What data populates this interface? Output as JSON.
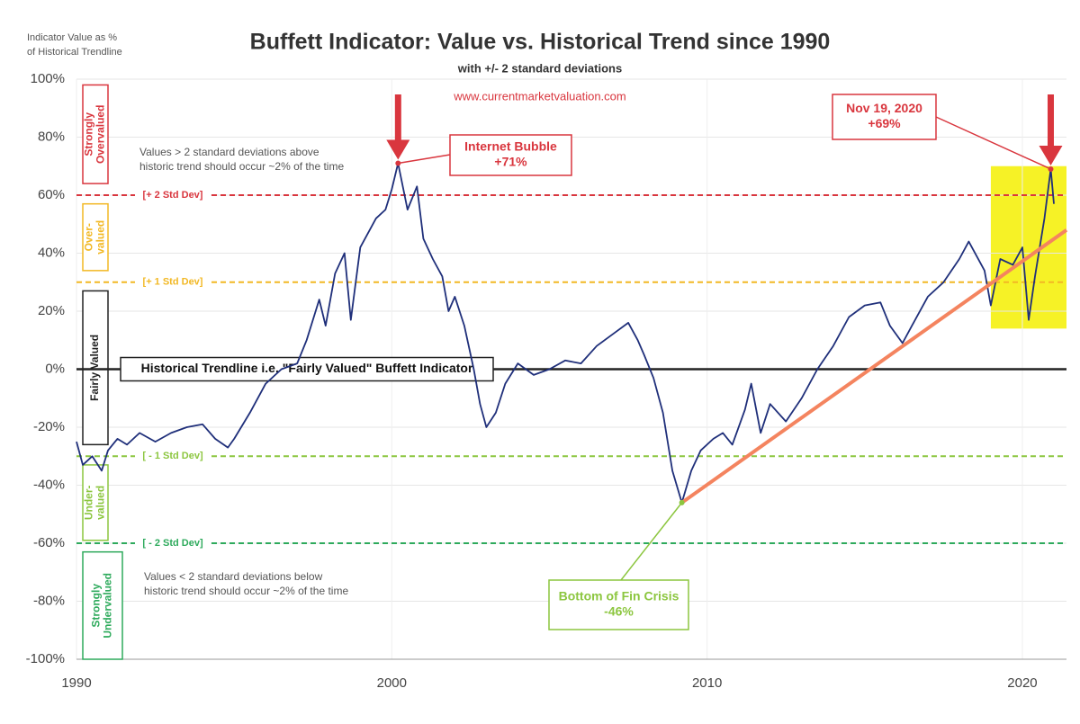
{
  "chart_data": {
    "type": "line",
    "title": "Buffett Indicator: Value vs. Historical Trend since 1990",
    "subtitle": "with +/- 2 standard deviations",
    "source": "www.currentmarketvaluation.com",
    "y_label": [
      "Indicator Value as %",
      "of Historical Trendline"
    ],
    "xlim": [
      1990,
      2021.4
    ],
    "ylim": [
      -100,
      100
    ],
    "xticks": [
      1990,
      2000,
      2010,
      2020
    ],
    "yticks": [
      {
        "value": -100,
        "label": "-100%"
      },
      {
        "value": -80,
        "label": "-80%"
      },
      {
        "value": -60,
        "label": "-60%"
      },
      {
        "value": -40,
        "label": "-40%"
      },
      {
        "value": -20,
        "label": "-20%"
      },
      {
        "value": 0,
        "label": "0%"
      },
      {
        "value": 20,
        "label": "20%"
      },
      {
        "value": 40,
        "label": "40%"
      },
      {
        "value": 60,
        "label": "60%"
      },
      {
        "value": 80,
        "label": "80%"
      },
      {
        "value": 100,
        "label": "100%"
      }
    ],
    "grid": true,
    "series": [
      {
        "color": "#1f2f7a",
        "x": [
          1990.0,
          1990.2,
          1990.5,
          1990.8,
          1991.0,
          1991.3,
          1991.6,
          1992.0,
          1992.5,
          1993.0,
          1993.5,
          1994.0,
          1994.4,
          1994.8,
          1995.0,
          1995.5,
          1996.0,
          1996.5,
          1997.0,
          1997.3,
          1997.7,
          1997.9,
          1998.2,
          1998.5,
          1998.7,
          1999.0,
          1999.5,
          1999.8,
          2000.0,
          2000.2,
          2000.5,
          2000.8,
          2001.0,
          2001.3,
          2001.6,
          2001.8,
          2002.0,
          2002.3,
          2002.6,
          2002.8,
          2003.0,
          2003.3,
          2003.6,
          2004.0,
          2004.5,
          2005.0,
          2005.5,
          2006.0,
          2006.5,
          2007.0,
          2007.5,
          2007.8,
          2008.0,
          2008.3,
          2008.6,
          2008.9,
          2009.2,
          2009.5,
          2009.8,
          2010.2,
          2010.5,
          2010.8,
          2011.2,
          2011.4,
          2011.7,
          2012.0,
          2012.5,
          2013.0,
          2013.5,
          2014.0,
          2014.5,
          2015.0,
          2015.5,
          2015.8,
          2016.2,
          2016.5,
          2017.0,
          2017.5,
          2018.0,
          2018.3,
          2018.8,
          2019.0,
          2019.3,
          2019.7,
          2020.0,
          2020.2,
          2020.4,
          2020.7,
          2020.9,
          2021.0
        ],
        "values": [
          -25,
          -33,
          -30,
          -35,
          -28,
          -24,
          -26,
          -22,
          -25,
          -22,
          -20,
          -19,
          -24,
          -27,
          -24,
          -15,
          -5,
          0,
          2,
          10,
          24,
          15,
          33,
          40,
          17,
          42,
          52,
          55,
          62,
          71,
          55,
          63,
          45,
          38,
          32,
          20,
          25,
          15,
          0,
          -12,
          -20,
          -15,
          -5,
          2,
          -2,
          0,
          3,
          2,
          8,
          12,
          16,
          10,
          5,
          -3,
          -15,
          -35,
          -46,
          -35,
          -28,
          -24,
          -22,
          -26,
          -14,
          -5,
          -22,
          -12,
          -18,
          -10,
          0,
          8,
          18,
          22,
          23,
          15,
          9,
          15,
          25,
          30,
          38,
          44,
          34,
          22,
          38,
          36,
          42,
          17,
          32,
          52,
          69,
          57
        ]
      },
      {
        "color": "#f4845f",
        "x": [
          2009.2,
          2021.4
        ],
        "values": [
          -46,
          48
        ]
      }
    ],
    "zero_line": {
      "value": 0,
      "label": "Historical Trendline i.e. \"Fairly Valued\" Buffett Indicator",
      "color": "#222222"
    },
    "reference_lines": [
      {
        "value": 60,
        "label": "[+ 2 Std Dev]",
        "color": "#d9363e"
      },
      {
        "value": 30,
        "label": "[+ 1 Std Dev]",
        "color": "#f2b824"
      },
      {
        "value": -30,
        "label": "[ - 1 Std Dev]",
        "color": "#8cc63f"
      },
      {
        "value": -60,
        "label": "[ - 2 Std Dev]",
        "color": "#2eaa5c"
      }
    ],
    "zones": [
      {
        "label": [
          "Strongly",
          "Overvalued"
        ],
        "from": 64,
        "to": 98,
        "color": "#d9363e"
      },
      {
        "label": [
          "Over-",
          "valued"
        ],
        "from": 34,
        "to": 57,
        "color": "#f2b824"
      },
      {
        "label": [
          "Fairly Valued"
        ],
        "from": -26,
        "to": 27,
        "color": "#222222"
      },
      {
        "label": [
          "Under-",
          "valued"
        ],
        "from": -59,
        "to": -33,
        "color": "#8cc63f"
      },
      {
        "label": [
          "Strongly",
          "Undervalued"
        ],
        "from": -100,
        "to": -63,
        "color": "#2eaa5c"
      }
    ],
    "notes": [
      [
        "Values > 2 standard deviations above",
        "historic trend should occur ~2% of the time"
      ],
      [
        "Values < 2 standard deviations below",
        "historic trend should occur ~2% of the time"
      ]
    ],
    "callouts": [
      {
        "text": [
          "Internet Bubble",
          "+71%"
        ],
        "x": 2000.2,
        "y": 71,
        "color": "#d9363e"
      },
      {
        "text": [
          "Bottom of Fin Crisis",
          "-46%"
        ],
        "x": 2009.2,
        "y": -46,
        "color": "#8cc63f"
      },
      {
        "text": [
          "Nov 19, 2020",
          "+69%"
        ],
        "x": 2020.9,
        "y": 69,
        "color": "#d9363e"
      }
    ],
    "highlight": {
      "x": [
        2019.0,
        2021.4
      ],
      "y": [
        14,
        70
      ],
      "color": "#f5f000"
    }
  }
}
